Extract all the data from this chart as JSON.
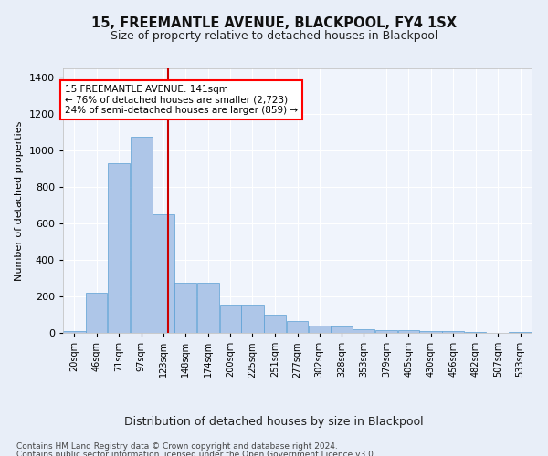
{
  "title": "15, FREEMANTLE AVENUE, BLACKPOOL, FY4 1SX",
  "subtitle": "Size of property relative to detached houses in Blackpool",
  "xlabel": "Distribution of detached houses by size in Blackpool",
  "ylabel": "Number of detached properties",
  "footnote1": "Contains HM Land Registry data © Crown copyright and database right 2024.",
  "footnote2": "Contains public sector information licensed under the Open Government Licence v3.0.",
  "bar_color": "#aec6e8",
  "bar_edge_color": "#5a9fd4",
  "bg_color": "#e8eef8",
  "plot_bg_color": "#f0f4fc",
  "grid_color": "#ffffff",
  "marker_color": "#cc0000",
  "annotation_text": "15 FREEMANTLE AVENUE: 141sqm\n← 76% of detached houses are smaller (2,723)\n24% of semi-detached houses are larger (859) →",
  "property_sqm": 141,
  "bin_labels": [
    "20sqm",
    "46sqm",
    "71sqm",
    "97sqm",
    "123sqm",
    "148sqm",
    "174sqm",
    "200sqm",
    "225sqm",
    "251sqm",
    "277sqm",
    "302sqm",
    "328sqm",
    "353sqm",
    "379sqm",
    "405sqm",
    "430sqm",
    "456sqm",
    "482sqm",
    "507sqm",
    "533sqm"
  ],
  "bin_edges": [
    20,
    46,
    71,
    97,
    123,
    148,
    174,
    200,
    225,
    251,
    277,
    302,
    328,
    353,
    379,
    405,
    430,
    456,
    482,
    507,
    533,
    559
  ],
  "bar_heights": [
    10,
    220,
    930,
    1075,
    650,
    275,
    275,
    155,
    155,
    100,
    65,
    40,
    35,
    20,
    15,
    15,
    10,
    10,
    5,
    0,
    5
  ],
  "ylim": [
    0,
    1450
  ],
  "yticks": [
    0,
    200,
    400,
    600,
    800,
    1000,
    1200,
    1400
  ]
}
